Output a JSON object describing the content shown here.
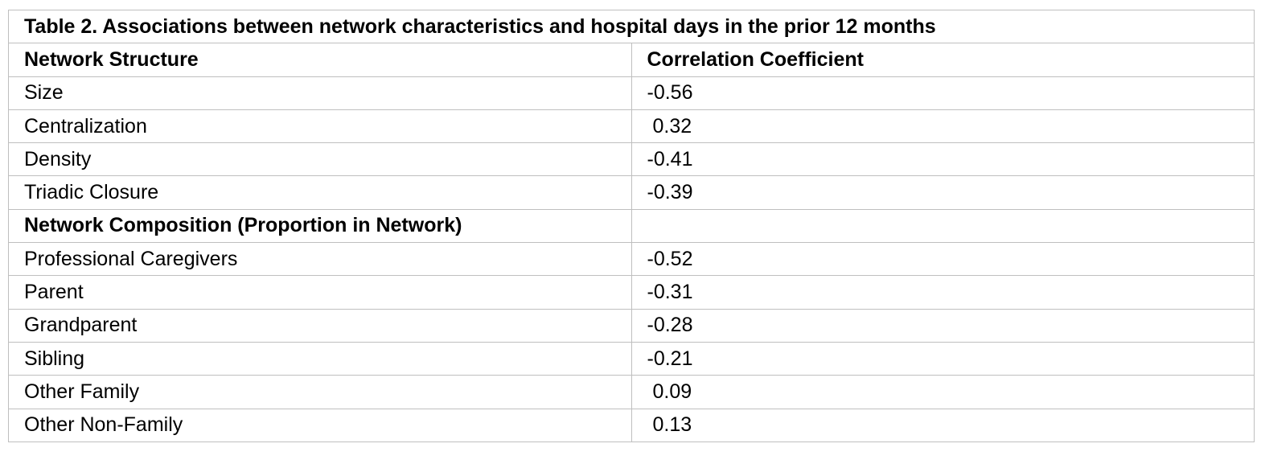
{
  "table": {
    "title": "Table 2. Associations between network characteristics and hospital days in the prior 12 months",
    "header": [
      "Network Structure",
      "Correlation Coefficient"
    ],
    "rows": [
      [
        "Size",
        -0.56
      ],
      [
        "Centralization",
        0.32
      ],
      [
        "Density",
        -0.41
      ],
      [
        "Triadic Closure",
        -0.39
      ],
      [
        "Network Composition (Proportion in Network)"
      ],
      [
        "Professional Caregivers",
        -0.52
      ],
      [
        "Parent",
        -0.31
      ],
      [
        "Grandparent",
        -0.28
      ],
      [
        "Sibling",
        -0.21
      ],
      [
        "Other Family",
        0.09
      ],
      [
        "Other Non-Family",
        0.13
      ]
    ]
  }
}
